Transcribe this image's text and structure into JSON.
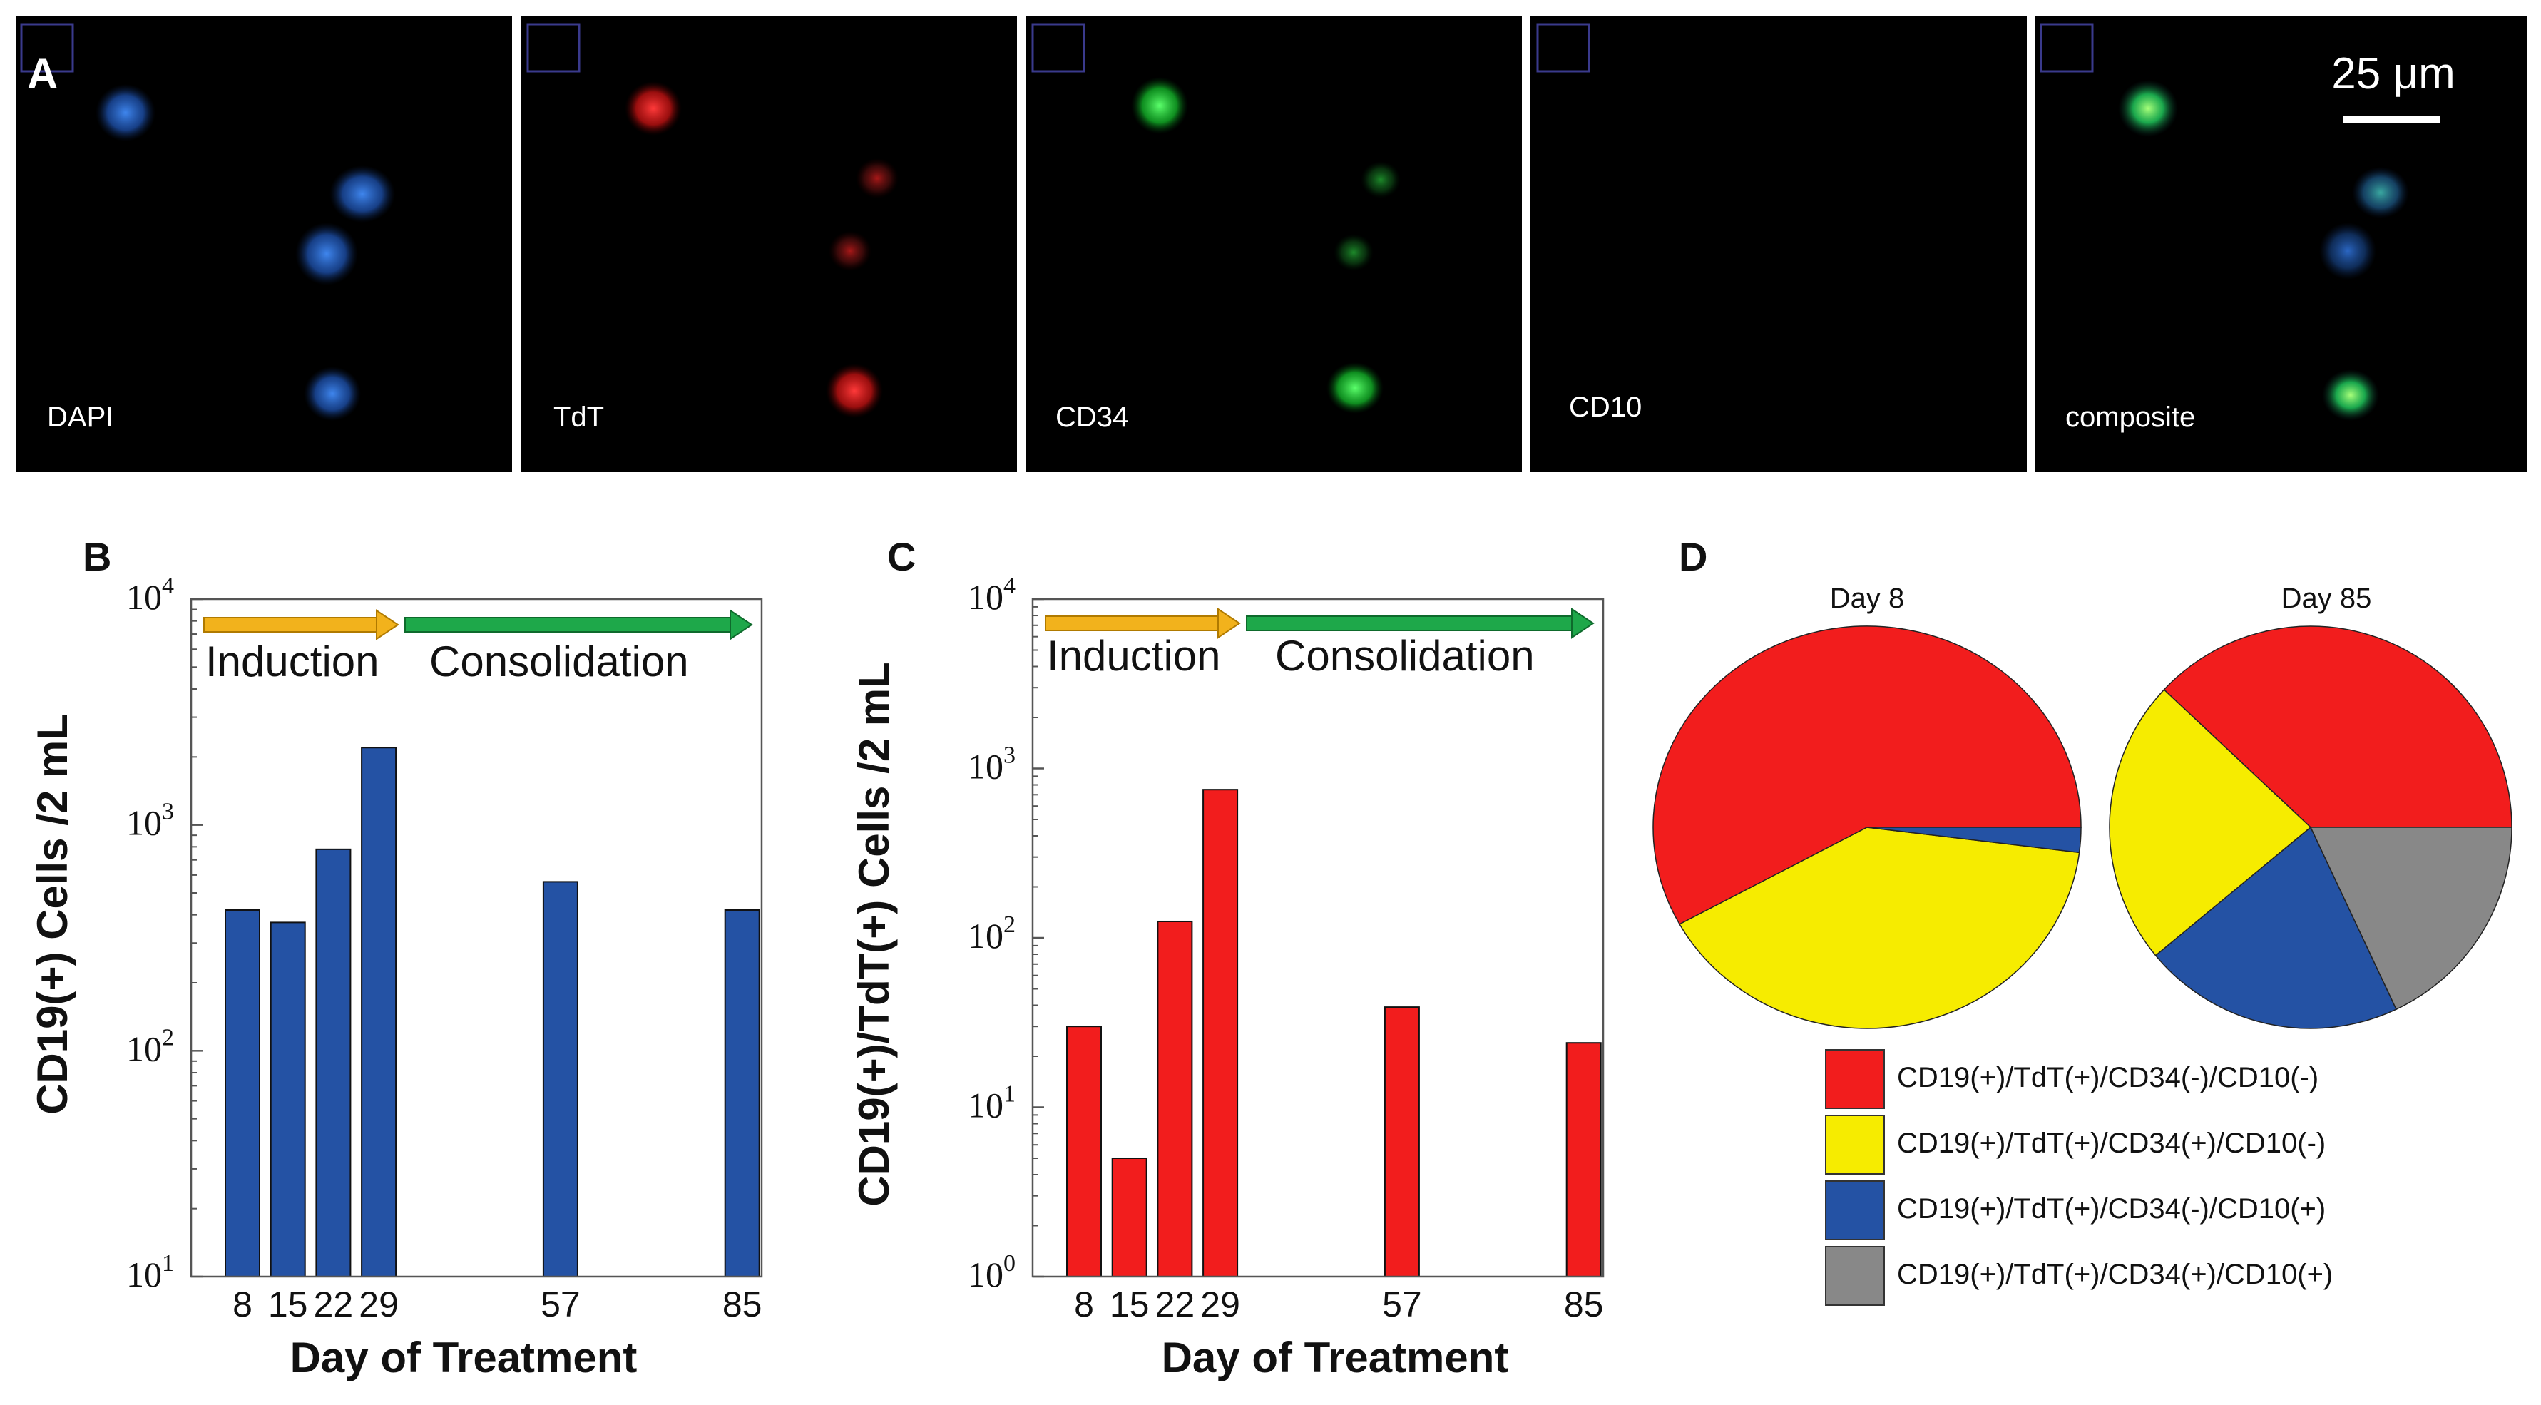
{
  "figure_labels": {
    "A": "A",
    "B": "B",
    "C": "C",
    "D": "D"
  },
  "micrograph_panels": [
    {
      "label": "DAPI",
      "channel_color": "#2a6fd6"
    },
    {
      "label": "TdT",
      "channel_color": "#e41a1a"
    },
    {
      "label": "CD34",
      "channel_color": "#18c832"
    },
    {
      "label": "CD10",
      "channel_color": "#000000"
    },
    {
      "label": "composite",
      "channel_color": "#22c870"
    }
  ],
  "scale_bar": {
    "label": "25 μm"
  },
  "phases": {
    "induction": "Induction",
    "consolidation": "Consolidation",
    "induction_color": "#f2b21c",
    "consolidation_color": "#1ea84a"
  },
  "chart_data": [
    {
      "id": "B",
      "type": "bar",
      "scale": "log",
      "title": "",
      "xlabel": "Day of Treatment",
      "ylabel": "CD19(+) Cells /2 mL",
      "x": [
        8,
        15,
        22,
        29,
        57,
        85
      ],
      "values": [
        420,
        370,
        780,
        2200,
        560,
        420
      ],
      "ylim": [
        10,
        10000
      ],
      "yticks": [
        {
          "base": "10",
          "exp": "1",
          "value": 10
        },
        {
          "base": "10",
          "exp": "2",
          "value": 100
        },
        {
          "base": "10",
          "exp": "3",
          "value": 1000
        },
        {
          "base": "10",
          "exp": "4",
          "value": 10000
        }
      ],
      "color": "#2452a4"
    },
    {
      "id": "C",
      "type": "bar",
      "scale": "log",
      "title": "",
      "xlabel": "Day of Treatment",
      "ylabel": "CD19(+)/TdT(+) Cells /2 mL",
      "x": [
        8,
        15,
        22,
        29,
        57,
        85
      ],
      "values": [
        30,
        5,
        125,
        750,
        39,
        24
      ],
      "ylim": [
        1,
        10000
      ],
      "yticks": [
        {
          "base": "10",
          "exp": "0",
          "value": 1
        },
        {
          "base": "10",
          "exp": "1",
          "value": 10
        },
        {
          "base": "10",
          "exp": "2",
          "value": 100
        },
        {
          "base": "10",
          "exp": "3",
          "value": 1000
        },
        {
          "base": "10",
          "exp": "4",
          "value": 10000
        }
      ],
      "color": "#f21d1d"
    },
    {
      "id": "D",
      "type": "pie",
      "pies": [
        {
          "title": "Day 8",
          "values": [
            58,
            40,
            2,
            0
          ]
        },
        {
          "title": "Day 85",
          "values": [
            38,
            23,
            21,
            18
          ]
        }
      ],
      "legend": [
        {
          "label": "CD19(+)/TdT(+)/CD34(-)/CD10(-)",
          "color": "#f21d1d"
        },
        {
          "label": "CD19(+)/TdT(+)/CD34(+)/CD10(-)",
          "color": "#f6ec00"
        },
        {
          "label": "CD19(+)/TdT(+)/CD34(-)/CD10(+)",
          "color": "#2452a4"
        },
        {
          "label": "CD19(+)/TdT(+)/CD34(+)/CD10(+)",
          "color": "#888888"
        }
      ]
    }
  ]
}
